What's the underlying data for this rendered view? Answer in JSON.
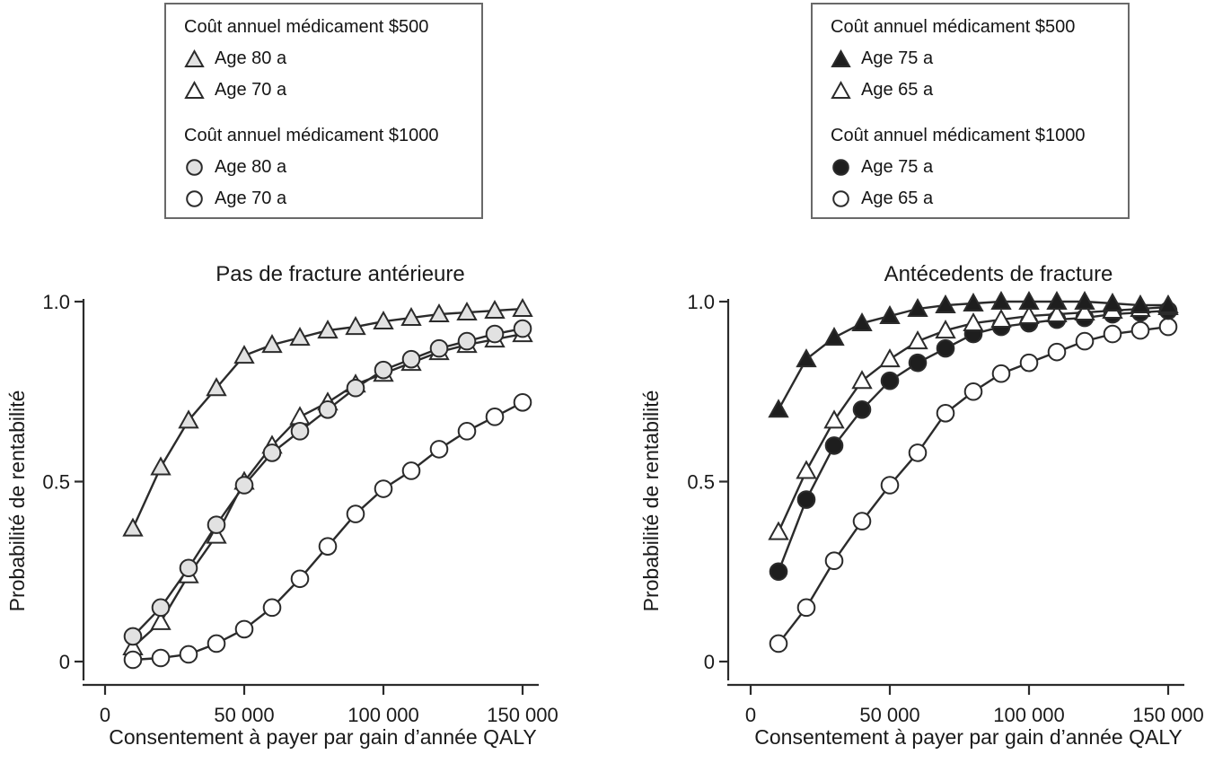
{
  "colors": {
    "stroke": "#2b2b2b",
    "gray_fill": "#e2e2e2",
    "white_fill": "#ffffff",
    "black_fill": "#1e1e1e",
    "legend_border": "#696969",
    "text": "#1a1a1a"
  },
  "legend_left": {
    "group1_title": "Coût annuel médicament $500",
    "group1_items": [
      {
        "marker": "gray-triangle",
        "label": "Age 80 a"
      },
      {
        "marker": "white-triangle",
        "label": "Age 70 a"
      }
    ],
    "group2_title": "Coût annuel médicament $1000",
    "group2_items": [
      {
        "marker": "gray-circle",
        "label": "Age 80 a"
      },
      {
        "marker": "white-circle",
        "label": "Age 70 a"
      }
    ]
  },
  "legend_right": {
    "group1_title": "Coût annuel médicament $500",
    "group1_items": [
      {
        "marker": "black-triangle",
        "label": "Age 75 a"
      },
      {
        "marker": "white-triangle",
        "label": "Age 65 a"
      }
    ],
    "group2_title": "Coût annuel médicament $1000",
    "group2_items": [
      {
        "marker": "black-circle",
        "label": "Age 75 a"
      },
      {
        "marker": "white-circle",
        "label": "Age 65 a"
      }
    ]
  },
  "chart_data": [
    {
      "type": "line",
      "title": "Pas de fracture antérieure",
      "xlabel": "Consentement à payer par gain d’année QALY",
      "ylabel": "Probabilité de rentabilité",
      "xlim": [
        0,
        155000
      ],
      "ylim": [
        0,
        1.0
      ],
      "grid": false,
      "xticks": {
        "values": [
          0,
          50000,
          100000,
          150000
        ],
        "labels": [
          "0",
          "50 000",
          "100 000",
          "150 000"
        ]
      },
      "yticks": {
        "values": [
          0,
          0.5,
          1.0
        ],
        "labels": [
          "0",
          "0.5",
          "1.0"
        ]
      },
      "x": [
        10000,
        20000,
        30000,
        40000,
        50000,
        60000,
        70000,
        80000,
        90000,
        100000,
        110000,
        120000,
        130000,
        140000,
        150000
      ],
      "series": [
        {
          "name": "Age 80 a — coût annuel $500",
          "marker": "triangle",
          "fill": "gray",
          "values": [
            0.37,
            0.54,
            0.67,
            0.76,
            0.85,
            0.88,
            0.9,
            0.92,
            0.93,
            0.945,
            0.955,
            0.965,
            0.97,
            0.975,
            0.98
          ]
        },
        {
          "name": "Age 70 a — coût annuel $500",
          "marker": "triangle",
          "fill": "white",
          "values": [
            0.04,
            0.11,
            0.24,
            0.35,
            0.5,
            0.6,
            0.68,
            0.72,
            0.77,
            0.8,
            0.83,
            0.86,
            0.88,
            0.895,
            0.91
          ]
        },
        {
          "name": "Age 80 a — coût annuel $1000",
          "marker": "circle",
          "fill": "gray",
          "values": [
            0.07,
            0.15,
            0.26,
            0.38,
            0.49,
            0.58,
            0.64,
            0.7,
            0.76,
            0.81,
            0.84,
            0.87,
            0.89,
            0.91,
            0.925
          ]
        },
        {
          "name": "Age 70 a — coût annuel $1000",
          "marker": "circle",
          "fill": "white",
          "values": [
            0.005,
            0.01,
            0.02,
            0.05,
            0.09,
            0.15,
            0.23,
            0.32,
            0.41,
            0.48,
            0.53,
            0.59,
            0.64,
            0.68,
            0.72
          ]
        }
      ]
    },
    {
      "type": "line",
      "title": "Antécedents de fracture",
      "xlabel": "Consentement à payer par gain d’année QALY",
      "ylabel": "Probabilité de rentabilité",
      "xlim": [
        0,
        155000
      ],
      "ylim": [
        0,
        1.0
      ],
      "grid": false,
      "xticks": {
        "values": [
          0,
          50000,
          100000,
          150000
        ],
        "labels": [
          "0",
          "50 000",
          "100 000",
          "150 000"
        ]
      },
      "yticks": {
        "values": [
          0,
          0.5,
          1.0
        ],
        "labels": [
          "0",
          "0.5",
          "1.0"
        ]
      },
      "x": [
        10000,
        20000,
        30000,
        40000,
        50000,
        60000,
        70000,
        80000,
        90000,
        100000,
        110000,
        120000,
        130000,
        140000,
        150000
      ],
      "series": [
        {
          "name": "Age 75 a — coût annuel $500",
          "marker": "triangle",
          "fill": "black",
          "values": [
            0.7,
            0.84,
            0.9,
            0.94,
            0.96,
            0.98,
            0.99,
            0.995,
            1.0,
            1.0,
            1.0,
            1.0,
            0.995,
            0.99,
            0.99
          ]
        },
        {
          "name": "Age 65 a — coût annuel $500",
          "marker": "triangle",
          "fill": "white",
          "values": [
            0.36,
            0.53,
            0.67,
            0.78,
            0.84,
            0.89,
            0.92,
            0.94,
            0.95,
            0.96,
            0.965,
            0.97,
            0.975,
            0.98,
            0.985
          ]
        },
        {
          "name": "Age 75 a — coût annuel $1000",
          "marker": "circle",
          "fill": "black",
          "values": [
            0.25,
            0.45,
            0.6,
            0.7,
            0.78,
            0.83,
            0.87,
            0.91,
            0.93,
            0.94,
            0.95,
            0.955,
            0.965,
            0.97,
            0.975
          ]
        },
        {
          "name": "Age 65 a — coût annuel $1000",
          "marker": "circle",
          "fill": "white",
          "values": [
            0.05,
            0.15,
            0.28,
            0.39,
            0.49,
            0.58,
            0.69,
            0.75,
            0.8,
            0.83,
            0.86,
            0.89,
            0.91,
            0.92,
            0.93
          ]
        }
      ]
    }
  ]
}
